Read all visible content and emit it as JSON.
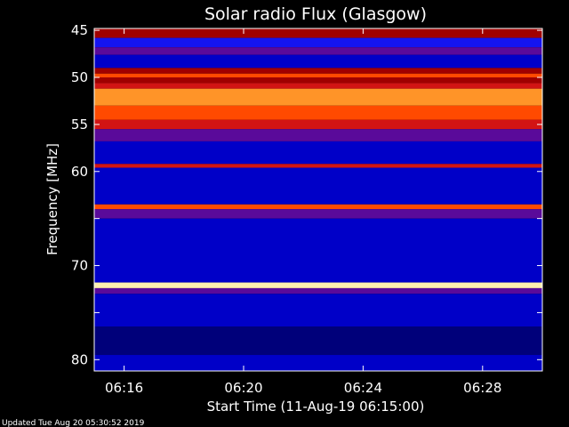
{
  "chart_data": {
    "type": "heatmap",
    "title": "Solar radio Flux (Glasgow)",
    "xlabel": "Start Time (11-Aug-19 06:15:00)",
    "ylabel": "Frequency [MHz]",
    "x_tick_labels": [
      "06:16",
      "06:20",
      "06:24",
      "06:28"
    ],
    "x_tick_minutes": [
      1,
      5,
      9,
      13
    ],
    "xlim_minutes": [
      0,
      15
    ],
    "y_ticks": [
      45,
      50,
      55,
      60,
      65,
      70,
      75,
      80
    ],
    "y_tick_labels": [
      "45",
      "50",
      "55",
      "60",
      "",
      "70",
      "",
      "80"
    ],
    "ylim": [
      44.8,
      81.2
    ],
    "colorscale": [
      "#00007a",
      "#0000c8",
      "#1414f0",
      "#5a0a9a",
      "#a00000",
      "#d21414",
      "#ff4a00",
      "#ff9428",
      "#ffc060",
      "#fff0b0"
    ],
    "bands": [
      {
        "f0": 44.8,
        "f1": 45.8,
        "level": 4
      },
      {
        "f0": 45.8,
        "f1": 46.8,
        "level": 2
      },
      {
        "f0": 46.8,
        "f1": 47.6,
        "level": 3
      },
      {
        "f0": 47.6,
        "f1": 49.0,
        "level": 1
      },
      {
        "f0": 49.0,
        "f1": 49.6,
        "level": 4
      },
      {
        "f0": 49.6,
        "f1": 50.0,
        "level": 6
      },
      {
        "f0": 50.0,
        "f1": 50.6,
        "level": 4
      },
      {
        "f0": 50.6,
        "f1": 51.2,
        "level": 5
      },
      {
        "f0": 51.2,
        "f1": 53.0,
        "level": 7
      },
      {
        "f0": 53.0,
        "f1": 54.5,
        "level": 6
      },
      {
        "f0": 54.5,
        "f1": 55.5,
        "level": 5
      },
      {
        "f0": 55.5,
        "f1": 56.8,
        "level": 3
      },
      {
        "f0": 56.8,
        "f1": 59.2,
        "level": 1
      },
      {
        "f0": 59.2,
        "f1": 59.6,
        "level": 5
      },
      {
        "f0": 59.6,
        "f1": 63.5,
        "level": 1
      },
      {
        "f0": 63.5,
        "f1": 64.0,
        "level": 6
      },
      {
        "f0": 64.0,
        "f1": 65.0,
        "level": 3
      },
      {
        "f0": 65.0,
        "f1": 71.8,
        "level": 1
      },
      {
        "f0": 71.8,
        "f1": 72.4,
        "level": 9
      },
      {
        "f0": 72.4,
        "f1": 73.0,
        "level": 3
      },
      {
        "f0": 73.0,
        "f1": 76.5,
        "level": 1
      },
      {
        "f0": 76.5,
        "f1": 79.5,
        "level": 0
      },
      {
        "f0": 79.5,
        "f1": 81.2,
        "level": 1
      }
    ],
    "grid": false,
    "legend": "none"
  },
  "footer": {
    "updated": "Updated Tue Aug 20 05:30:52 2019"
  }
}
